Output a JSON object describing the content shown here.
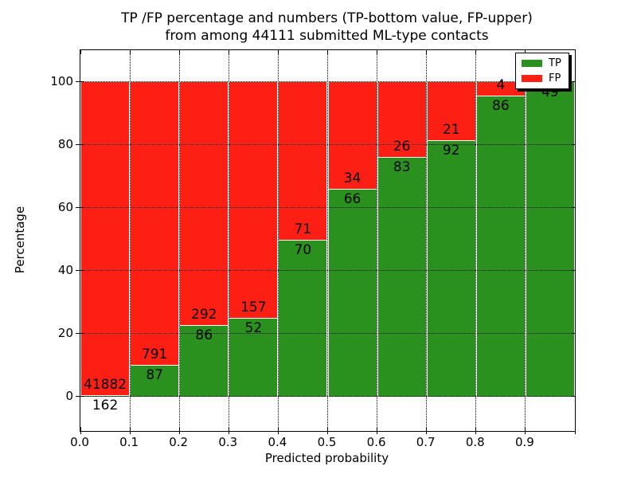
{
  "title": {
    "line1": "TP /FP percentage and numbers (TP-bottom value, FP-upper)",
    "line2": "from among 44111 submitted ML-type contacts"
  },
  "axes": {
    "xlabel": "Predicted probability",
    "ylabel": "Percentage",
    "x_tick_labels": [
      "0.0",
      "0.1",
      "0.2",
      "0.3",
      "0.4",
      "0.5",
      "0.6",
      "0.7",
      "0.8",
      "0.9"
    ],
    "y_tick_values": [
      0,
      20,
      40,
      60,
      80,
      100
    ],
    "xlim": [
      0.0,
      1.0
    ],
    "ylim": [
      -11,
      110
    ],
    "grid": "dotted, drawn above bars"
  },
  "legend": {
    "position": "upper right",
    "entries": [
      {
        "label": "TP",
        "color": "#2a911f"
      },
      {
        "label": "FP",
        "color": "#fd1e14"
      }
    ]
  },
  "chart_data": {
    "type": "bar",
    "stacked": true,
    "normalized": "each bin scaled to 100%",
    "total_contacts": 44111,
    "bin_edges": [
      0.0,
      0.1,
      0.2,
      0.3,
      0.4,
      0.5,
      0.6,
      0.7,
      0.8,
      0.9,
      1.0
    ],
    "categories": [
      "0.0-0.1",
      "0.1-0.2",
      "0.2-0.3",
      "0.3-0.4",
      "0.4-0.5",
      "0.5-0.6",
      "0.6-0.7",
      "0.7-0.8",
      "0.8-0.9",
      "0.9-1.0"
    ],
    "series": [
      {
        "name": "TP",
        "color": "#2a911f",
        "counts": [
          162,
          87,
          86,
          52,
          70,
          66,
          83,
          92,
          86,
          49
        ]
      },
      {
        "name": "FP",
        "color": "#fd1e14",
        "counts": [
          41882,
          791,
          292,
          157,
          71,
          34,
          26,
          21,
          4,
          0
        ]
      }
    ],
    "tp_percent": [
      0.39,
      9.91,
      22.75,
      24.88,
      49.65,
      66.0,
      76.15,
      81.42,
      95.56,
      100.0
    ],
    "title": "TP /FP percentage and numbers (TP-bottom value, FP-upper) from among 44111 submitted ML-type contacts",
    "xlabel": "Predicted probability",
    "ylabel": "Percentage"
  },
  "colors": {
    "background": "#ffffff",
    "text": "#000000",
    "grid": "#000000",
    "spine": "#000000",
    "bar_edge": "#ffffff",
    "legend_shadow": "#000000"
  }
}
